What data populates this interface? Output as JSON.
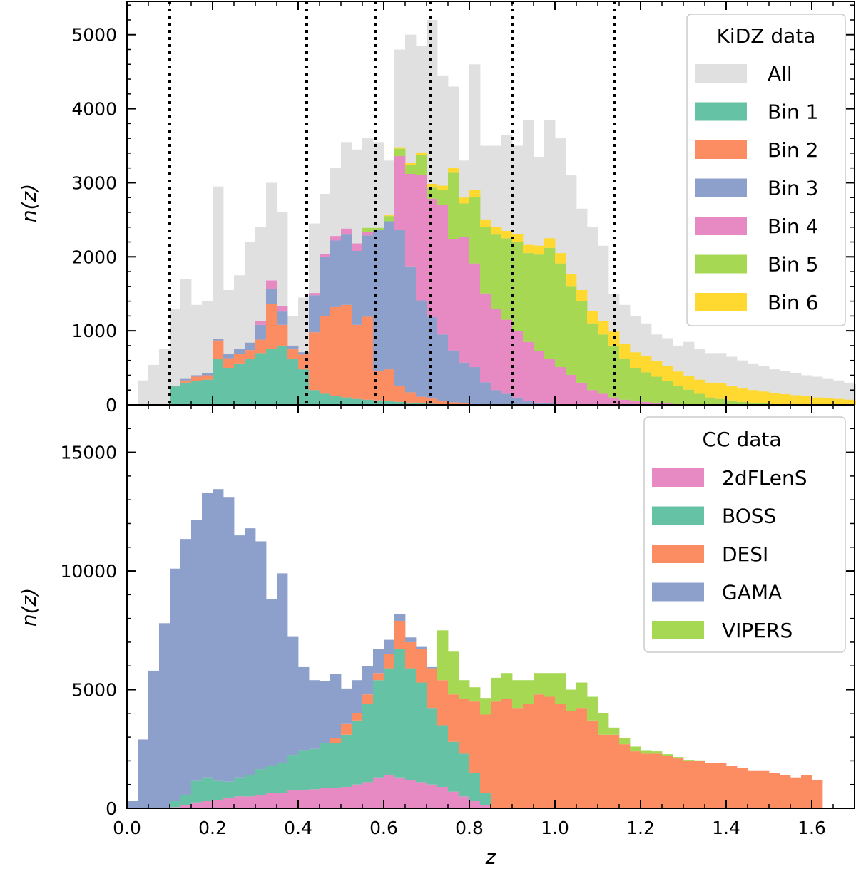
{
  "chart_data": [
    {
      "type": "bar",
      "subtype": "stacked histogram",
      "ylabel": "n(z)",
      "xlim": [
        0.0,
        1.7
      ],
      "ylim": [
        0,
        5450
      ],
      "yticks": [
        0,
        1000,
        2000,
        3000,
        4000,
        5000
      ],
      "ytick_labels": [
        "0",
        "1000",
        "2000",
        "3000",
        "4000",
        "5000"
      ],
      "grid": false,
      "legend": {
        "title": "KiDZ data",
        "placement": "top-right"
      },
      "bin_width": 0.025,
      "bin_start": 0.025,
      "background_series": {
        "name": "All",
        "color": "#e0e0e0",
        "values": [
          330,
          540,
          750,
          1300,
          1700,
          1350,
          1400,
          2950,
          1550,
          1750,
          2200,
          2400,
          3000,
          2600,
          1200,
          1450,
          2450,
          2850,
          3200,
          3550,
          3450,
          3600,
          3550,
          3300,
          4800,
          5000,
          4850,
          5200,
          4450,
          4300,
          3300,
          4600,
          3500,
          3500,
          3650,
          3500,
          3850,
          3350,
          3850,
          3600,
          3100,
          2650,
          2400,
          2150,
          1500,
          1350,
          1200,
          1100,
          950,
          900,
          800,
          850,
          750,
          700,
          700,
          650,
          600,
          560,
          520,
          480,
          460,
          430,
          400,
          380,
          350,
          330,
          300,
          280,
          250,
          230
        ]
      },
      "dividers": [
        0.1,
        0.42,
        0.58,
        0.71,
        0.9,
        1.14
      ],
      "series": [
        {
          "name": "Bin 1",
          "color": "#66c2a5",
          "values": [
            0,
            0,
            0,
            250,
            300,
            320,
            340,
            620,
            500,
            560,
            620,
            700,
            760,
            800,
            620,
            480,
            200,
            150,
            120,
            100,
            80,
            70,
            60,
            50,
            40,
            30,
            20,
            15,
            10,
            5,
            0,
            0,
            0,
            0,
            0,
            0,
            0,
            0,
            0,
            0,
            0,
            0,
            0,
            0,
            0,
            0,
            0,
            0,
            0,
            0,
            0,
            0,
            0,
            0,
            0,
            0,
            0,
            0,
            0,
            0,
            0,
            0,
            0,
            0,
            0,
            0,
            0,
            0,
            0,
            0
          ]
        },
        {
          "name": "Bin 2",
          "color": "#fc8d62",
          "values": [
            0,
            0,
            0,
            10,
            30,
            60,
            60,
            250,
            130,
            130,
            120,
            180,
            600,
            280,
            130,
            200,
            780,
            1050,
            1200,
            1250,
            1000,
            1120,
            400,
            430,
            220,
            140,
            90,
            70,
            40,
            30,
            20,
            10,
            5,
            0,
            0,
            0,
            0,
            0,
            0,
            0,
            0,
            0,
            0,
            0,
            0,
            0,
            0,
            0,
            0,
            0,
            0,
            0,
            0,
            0,
            0,
            0,
            0,
            0,
            0,
            0,
            0,
            0,
            0,
            0,
            0,
            0,
            0,
            0
          ]
        },
        {
          "name": "Bin 3",
          "color": "#8da0cb",
          "values": [
            0,
            0,
            0,
            0,
            20,
            20,
            30,
            20,
            60,
            70,
            100,
            200,
            200,
            180,
            50,
            30,
            500,
            800,
            900,
            950,
            1000,
            1100,
            1900,
            2000,
            2100,
            1700,
            1300,
            1100,
            900,
            700,
            550,
            500,
            300,
            200,
            150,
            100,
            50,
            30,
            20,
            10,
            5,
            0,
            0,
            0,
            0,
            0,
            0,
            0,
            0,
            0,
            0,
            0,
            0,
            0,
            0,
            0,
            0,
            0,
            0,
            0,
            0,
            0,
            0,
            0,
            0,
            0,
            0,
            0,
            0,
            0
          ]
        },
        {
          "name": "Bin 4",
          "color": "#e78ac3",
          "values": [
            0,
            0,
            0,
            0,
            0,
            0,
            0,
            0,
            0,
            0,
            0,
            50,
            120,
            70,
            0,
            0,
            30,
            40,
            60,
            80,
            100,
            50,
            0,
            0,
            1000,
            1250,
            1700,
            1600,
            1750,
            1500,
            1700,
            1400,
            1200,
            1100,
            1000,
            900,
            800,
            700,
            600,
            500,
            400,
            300,
            200,
            150,
            100,
            70,
            50,
            40,
            30,
            20,
            10,
            5,
            0,
            0,
            0,
            0,
            0,
            0,
            0,
            0,
            0,
            0,
            0,
            0,
            0,
            0,
            0,
            0,
            0,
            0
          ]
        },
        {
          "name": "Bin 5",
          "color": "#a6d854",
          "values": [
            0,
            0,
            0,
            0,
            0,
            0,
            0,
            0,
            0,
            0,
            0,
            0,
            0,
            0,
            0,
            0,
            0,
            0,
            0,
            0,
            0,
            50,
            30,
            70,
            100,
            120,
            260,
            150,
            200,
            900,
            450,
            900,
            900,
            1000,
            1100,
            1200,
            1200,
            1300,
            1500,
            1400,
            1200,
            1100,
            900,
            800,
            700,
            550,
            450,
            400,
            350,
            300,
            250,
            200,
            150,
            100,
            80,
            60,
            40,
            30,
            20,
            10,
            5,
            0,
            0,
            0,
            0,
            0,
            0,
            0,
            0,
            0
          ]
        },
        {
          "name": "Bin 6",
          "color": "#ffd92f",
          "values": [
            0,
            0,
            0,
            0,
            0,
            0,
            0,
            0,
            0,
            0,
            0,
            0,
            0,
            0,
            0,
            0,
            0,
            0,
            0,
            0,
            0,
            0,
            0,
            10,
            20,
            30,
            40,
            50,
            60,
            70,
            80,
            90,
            100,
            100,
            100,
            110,
            110,
            120,
            130,
            140,
            160,
            150,
            170,
            180,
            190,
            200,
            210,
            220,
            210,
            200,
            190,
            180,
            190,
            200,
            210,
            200,
            180,
            170,
            160,
            150,
            140,
            130,
            120,
            100,
            90,
            80,
            70,
            60,
            50,
            30
          ]
        }
      ]
    },
    {
      "type": "bar",
      "subtype": "stacked histogram",
      "xlabel": "z",
      "ylabel": "n(z)",
      "xlim": [
        0.0,
        1.7
      ],
      "ylim": [
        0,
        17000
      ],
      "xticks": [
        0.0,
        0.2,
        0.4,
        0.6,
        0.8,
        1.0,
        1.2,
        1.4,
        1.6
      ],
      "xtick_labels": [
        "0.0",
        "0.2",
        "0.4",
        "0.6",
        "0.8",
        "1.0",
        "1.2",
        "1.4",
        "1.6"
      ],
      "yticks": [
        0,
        5000,
        10000,
        15000
      ],
      "ytick_labels": [
        "0",
        "5000",
        "10000",
        "15000"
      ],
      "grid": false,
      "legend": {
        "title": "CC data",
        "placement": "top-right"
      },
      "bin_width": 0.025,
      "bin_start": 0.0,
      "series": [
        {
          "name": "2dFLenS",
          "color": "#e78ac3",
          "values": [
            0,
            0,
            0,
            0,
            50,
            150,
            250,
            300,
            350,
            420,
            500,
            500,
            550,
            650,
            650,
            750,
            750,
            800,
            850,
            850,
            900,
            1000,
            1100,
            1300,
            1400,
            1300,
            1200,
            1100,
            1000,
            900,
            700,
            500,
            300,
            150,
            0,
            0,
            0,
            0,
            0,
            0,
            0,
            0,
            0,
            0,
            0,
            0,
            0,
            0,
            0,
            0,
            0,
            0,
            0,
            0,
            0,
            0,
            0,
            0,
            0,
            0,
            0,
            0,
            0,
            0,
            0
          ]
        },
        {
          "name": "BOSS",
          "color": "#66c2a5",
          "values": [
            0,
            0,
            0,
            0,
            250,
            400,
            900,
            1000,
            800,
            700,
            800,
            900,
            1100,
            1150,
            1250,
            1500,
            1700,
            1700,
            1900,
            1900,
            2200,
            2700,
            3300,
            4100,
            4500,
            5400,
            4700,
            4200,
            3200,
            2600,
            2100,
            1800,
            1200,
            500,
            0,
            0,
            0,
            0,
            0,
            0,
            0,
            0,
            0,
            0,
            0,
            0,
            0,
            0,
            0,
            0,
            0,
            0,
            0,
            0,
            0,
            0,
            0,
            0,
            0,
            0,
            0,
            0,
            0,
            0,
            0
          ]
        },
        {
          "name": "DESI",
          "color": "#fc8d62",
          "values": [
            0,
            0,
            0,
            0,
            0,
            0,
            0,
            0,
            0,
            0,
            0,
            0,
            0,
            0,
            0,
            0,
            0,
            0,
            0,
            200,
            450,
            300,
            400,
            300,
            600,
            1200,
            1100,
            1400,
            1700,
            1900,
            2000,
            2300,
            3000,
            3300,
            4500,
            4600,
            4200,
            4400,
            4800,
            4700,
            4400,
            4100,
            4200,
            3700,
            3100,
            3100,
            2700,
            2400,
            2300,
            2300,
            2200,
            2100,
            2000,
            2000,
            1900,
            1900,
            1800,
            1700,
            1600,
            1600,
            1500,
            1400,
            1300,
            1400,
            1200
          ]
        },
        {
          "name": "GAMA",
          "color": "#8da0cb",
          "values": [
            300,
            2900,
            5800,
            7800,
            9800,
            10800,
            11000,
            12000,
            12300,
            12000,
            10200,
            10400,
            9600,
            7000,
            8000,
            5000,
            3500,
            2900,
            2600,
            2700,
            1500,
            1400,
            1200,
            1000,
            600,
            300,
            200,
            100,
            50,
            0,
            0,
            0,
            0,
            0,
            0,
            0,
            0,
            0,
            0,
            0,
            0,
            0,
            0,
            0,
            0,
            0,
            0,
            0,
            0,
            0,
            0,
            0,
            0,
            0,
            0,
            0,
            0,
            0,
            0,
            0,
            0,
            0,
            0,
            0,
            0
          ]
        },
        {
          "name": "VIPERS",
          "color": "#a6d854",
          "values": [
            0,
            0,
            0,
            0,
            0,
            0,
            0,
            0,
            0,
            0,
            0,
            0,
            0,
            0,
            0,
            0,
            0,
            0,
            0,
            0,
            0,
            0,
            0,
            0,
            0,
            0,
            0,
            0,
            0,
            2100,
            1800,
            800,
            600,
            700,
            1000,
            1100,
            1200,
            1000,
            900,
            1000,
            1300,
            900,
            1100,
            1000,
            900,
            300,
            250,
            200,
            150,
            100,
            80,
            60,
            40,
            20,
            0,
            0,
            0,
            0,
            0,
            0,
            0,
            0,
            0,
            0,
            0
          ]
        }
      ]
    }
  ]
}
